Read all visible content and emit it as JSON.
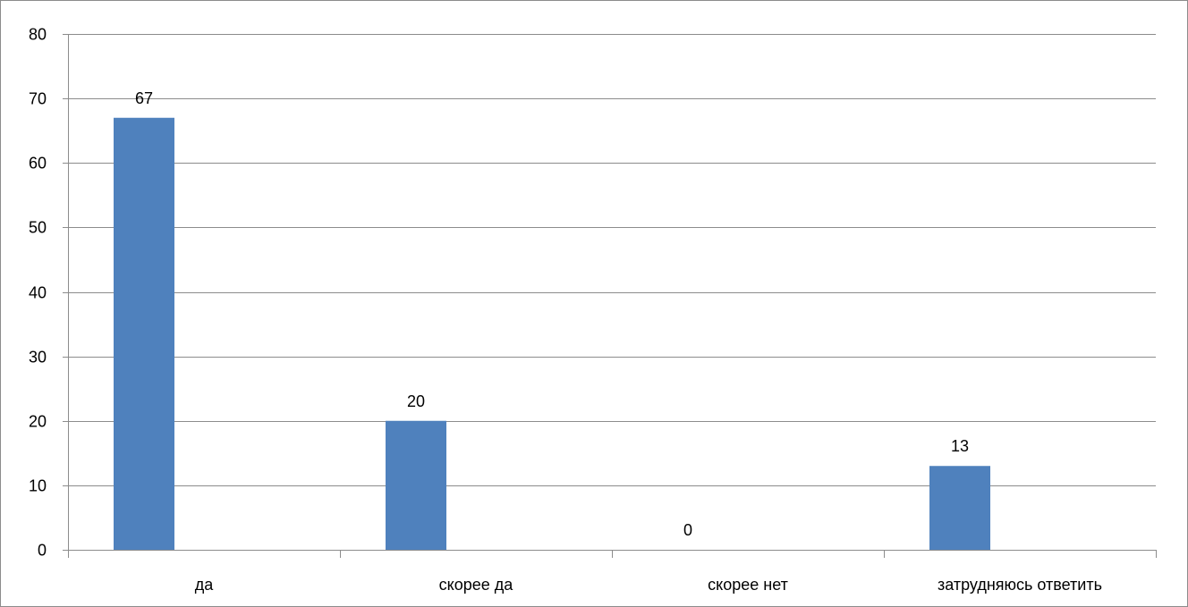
{
  "chart_data": {
    "type": "bar",
    "title": "",
    "xlabel": "",
    "ylabel": "",
    "categories": [
      "да",
      "скорее да",
      "скорее нет",
      "затрудняюсь ответить"
    ],
    "values": [
      67,
      20,
      0,
      13
    ],
    "data_labels": [
      "67",
      "20",
      "0",
      "13"
    ],
    "ylim": [
      0,
      80
    ],
    "yticks": [
      0,
      10,
      20,
      30,
      40,
      50,
      60,
      70,
      80
    ],
    "grid": true,
    "legend": "none",
    "bar_color": "#4f81bd",
    "grid_color": "#8c8c8c"
  }
}
